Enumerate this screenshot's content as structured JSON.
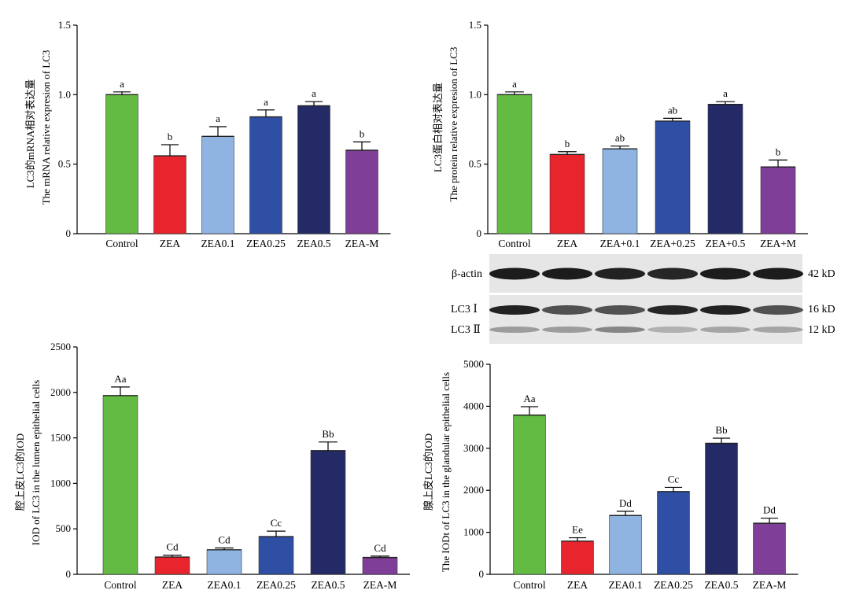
{
  "colors": {
    "green": "#63bb43",
    "red": "#e8242c",
    "lightblue": "#8fb4e2",
    "blue": "#2f4fa5",
    "navy": "#232a66",
    "purple": "#7f3e97"
  },
  "blot": {
    "rows": [
      {
        "label": "β-actin",
        "kd": "42 kD"
      },
      {
        "label": "LC3 Ⅰ",
        "kd": "16 kD"
      },
      {
        "label": "LC3 Ⅱ",
        "kd": "12 kD"
      }
    ]
  },
  "chart_data": [
    {
      "type": "bar",
      "ylabel_cn": "LC3的mRNA相对表达量",
      "ylabel_en": "The mRNA relative expresion of LC3",
      "categories": [
        "Control",
        "ZEA",
        "ZEA0.1",
        "ZEA0.25",
        "ZEA0.5",
        "ZEA-M"
      ],
      "values": [
        1.0,
        0.56,
        0.7,
        0.84,
        0.92,
        0.6
      ],
      "errors": [
        0.02,
        0.08,
        0.07,
        0.05,
        0.03,
        0.06
      ],
      "labels": [
        "a",
        "b",
        "a",
        "a",
        "a",
        "b"
      ],
      "ylim": [
        0,
        1.5
      ],
      "yticks": [
        "0",
        "0.5",
        "1.0",
        "1.5"
      ]
    },
    {
      "type": "bar",
      "ylabel_cn": "LC3蛋白相对表达量",
      "ylabel_en": "The protein relative expresion of LC3",
      "categories": [
        "Control",
        "ZEA",
        "ZEA+0.1",
        "ZEA+0.25",
        "ZEA+0.5",
        "ZEA+M"
      ],
      "values": [
        1.0,
        0.57,
        0.61,
        0.81,
        0.93,
        0.48
      ],
      "errors": [
        0.02,
        0.02,
        0.02,
        0.02,
        0.02,
        0.05
      ],
      "labels": [
        "a",
        "b",
        "ab",
        "ab",
        "a",
        "b"
      ],
      "ylim": [
        0,
        1.5
      ],
      "yticks": [
        "0",
        "0.5",
        "1.0",
        "1.5"
      ]
    },
    {
      "type": "bar",
      "ylabel_cn": "腔上皮LC3的IOD",
      "ylabel_en": "IOD of LC3 in the lumen epithelial cells",
      "categories": [
        "Control",
        "ZEA",
        "ZEA0.1",
        "ZEA0.25",
        "ZEA0.5",
        "ZEA-M"
      ],
      "values": [
        1965,
        190,
        270,
        415,
        1360,
        185
      ],
      "errors": [
        95,
        20,
        20,
        60,
        95,
        15
      ],
      "labels": [
        "Aa",
        "Cd",
        "Cd",
        "Cc",
        "Bb",
        "Cd"
      ],
      "ylim": [
        0,
        2500
      ],
      "yticks": [
        "0",
        "500",
        "1000",
        "1500",
        "2000",
        "2500"
      ]
    },
    {
      "type": "bar",
      "ylabel_cn": "腺上皮LC3的IOD",
      "ylabel_en": "The IODt of LC3 in the glandular epithelial cells",
      "categories": [
        "Control",
        "ZEA",
        "ZEA0.1",
        "ZEA0.25",
        "ZEA0.5",
        "ZEA-M"
      ],
      "values": [
        3790,
        790,
        1400,
        1970,
        3120,
        1215
      ],
      "errors": [
        200,
        80,
        100,
        100,
        120,
        120
      ],
      "labels": [
        "Aa",
        "Ee",
        "Dd",
        "Cc",
        "Bb",
        "Dd"
      ],
      "ylim": [
        0,
        5000
      ],
      "yticks": [
        "0",
        "1000",
        "2000",
        "3000",
        "4000",
        "5000"
      ]
    }
  ]
}
